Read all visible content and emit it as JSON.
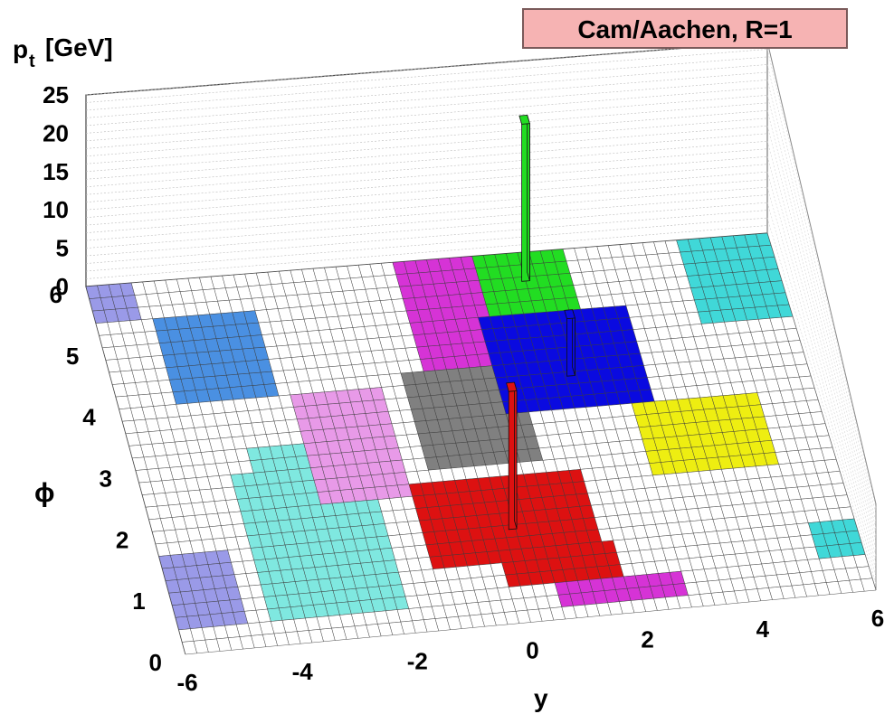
{
  "chart_data": {
    "type": "lego-3d",
    "title": "Cam/Aachen, R=1",
    "xlabel": "y",
    "ylabel": "ϕ",
    "zlabel_main": "p",
    "zlabel_sub": "t",
    "zlabel_unit": "[GeV]",
    "xlim": [
      -6,
      6
    ],
    "ylim": [
      0,
      6
    ],
    "zlim": [
      0,
      25
    ],
    "x_ticks": [
      "-6",
      "-4",
      "-2",
      "0",
      "2",
      "4",
      "6"
    ],
    "x_tick_values": [
      -6,
      -4,
      -2,
      0,
      2,
      4,
      6
    ],
    "y_ticks": [
      "0",
      "1",
      "2",
      "3",
      "4",
      "5",
      "6"
    ],
    "y_tick_values": [
      0,
      1,
      2,
      3,
      4,
      5,
      6
    ],
    "z_ticks": [
      "0",
      "5",
      "10",
      "15",
      "20",
      "25"
    ],
    "z_tick_values": [
      0,
      5,
      10,
      15,
      20,
      25
    ],
    "grid": true,
    "colors": {
      "title_box": "#f6b3b3",
      "grid_cell": "#ffffff",
      "grid_line": "#3a3a3a",
      "back_wall_grid": "#bbbbbb"
    },
    "jet_areas": [
      {
        "color": "#9a9ae8",
        "cells": [
          [
            -6,
            0.4,
            -4.9,
            1.7
          ]
        ]
      },
      {
        "color": "#9a9ae8",
        "cells": [
          [
            -6,
            5.5,
            -5.2,
            6
          ]
        ]
      },
      {
        "color": "#7fe8e0",
        "cells": [
          [
            -4.4,
            0.4,
            -2.0,
            2.7
          ],
          [
            -3.9,
            2.6,
            -2.9,
            3.3
          ]
        ]
      },
      {
        "color": "#e89ae8",
        "cells": [
          [
            -2.9,
            2.3,
            -1.4,
            4.0
          ]
        ]
      },
      {
        "color": "#4a90e2",
        "cells": [
          [
            -5.1,
            4.0,
            -3.1,
            5.3
          ]
        ]
      },
      {
        "color": "#808080",
        "cells": [
          [
            -0.9,
            2.7,
            1.0,
            4.2
          ]
        ]
      },
      {
        "color": "#dd1111",
        "cells": [
          [
            -1.4,
            1.0,
            1.6,
            2.5
          ],
          [
            -0.1,
            0.6,
            1.9,
            1.2
          ]
        ]
      },
      {
        "color": "#d633d6",
        "cells": [
          [
            -0.6,
            4.3,
            1.1,
            6.0
          ]
        ]
      },
      {
        "color": "#d633d6",
        "cells": [
          [
            0.7,
            0.2,
            2.8,
            0.6
          ]
        ]
      },
      {
        "color": "#22dd22",
        "cells": [
          [
            0.8,
            4.7,
            2.4,
            6.0
          ]
        ]
      },
      {
        "color": "#0a0ae0",
        "cells": [
          [
            0.6,
            3.4,
            3.1,
            5.0
          ]
        ]
      },
      {
        "color": "#eeee11",
        "cells": [
          [
            2.9,
            2.2,
            4.9,
            3.5
          ]
        ]
      },
      {
        "color": "#40d8d8",
        "cells": [
          [
            4.5,
            4.7,
            5.9,
            6.0
          ]
        ]
      },
      {
        "color": "#40d8d8",
        "cells": [
          [
            5.3,
            0.6,
            6.0,
            1.1
          ]
        ]
      }
    ],
    "towers": [
      {
        "x": 1.6,
        "y": 5.6,
        "pt": 20.5,
        "color": "#22dd22"
      },
      {
        "x": 1.9,
        "y": 4.0,
        "pt": 7.5,
        "color": "#0a0ae0"
      },
      {
        "x": 0.15,
        "y": 1.6,
        "pt": 18.0,
        "color": "#dd1111"
      }
    ]
  }
}
